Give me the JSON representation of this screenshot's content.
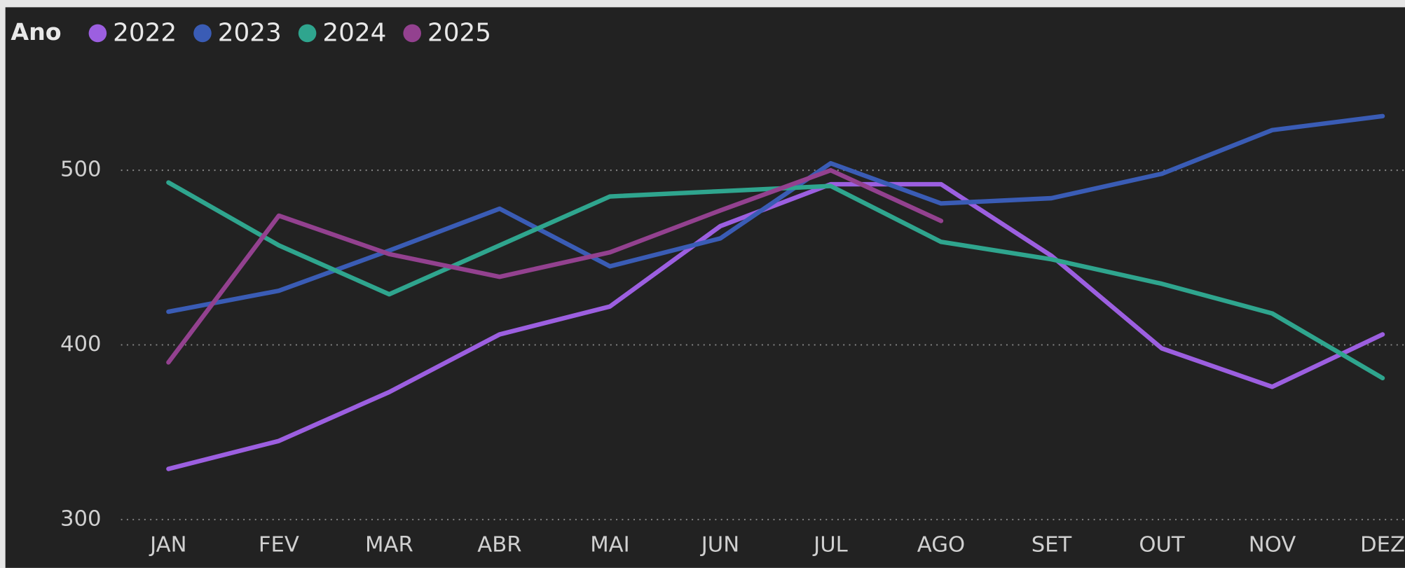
{
  "chart_data": {
    "type": "line",
    "legend_title": "Ano",
    "categories": [
      "JAN",
      "FEV",
      "MAR",
      "ABR",
      "MAI",
      "JUN",
      "JUL",
      "AGO",
      "SET",
      "OUT",
      "NOV",
      "DEZ"
    ],
    "series": [
      {
        "name": "2022",
        "color": "#9c5fe0",
        "values": [
          329,
          345,
          373,
          406,
          422,
          468,
          492,
          492,
          451,
          398,
          376,
          406
        ]
      },
      {
        "name": "2023",
        "color": "#3a5cb5",
        "values": [
          419,
          431,
          454,
          478,
          445,
          461,
          504,
          481,
          484,
          498,
          523,
          531
        ]
      },
      {
        "name": "2024",
        "color": "#2fa58e",
        "values": [
          493,
          457,
          429,
          457,
          485,
          488,
          491,
          459,
          449,
          435,
          418,
          381
        ]
      },
      {
        "name": "2025",
        "color": "#93418f",
        "values": [
          390,
          474,
          452,
          439,
          453,
          477,
          500,
          471,
          null,
          null,
          null,
          null
        ]
      }
    ],
    "ylim": [
      300,
      550
    ],
    "yticks": [
      300,
      400,
      500
    ],
    "grid": true,
    "legend": "top-left"
  }
}
